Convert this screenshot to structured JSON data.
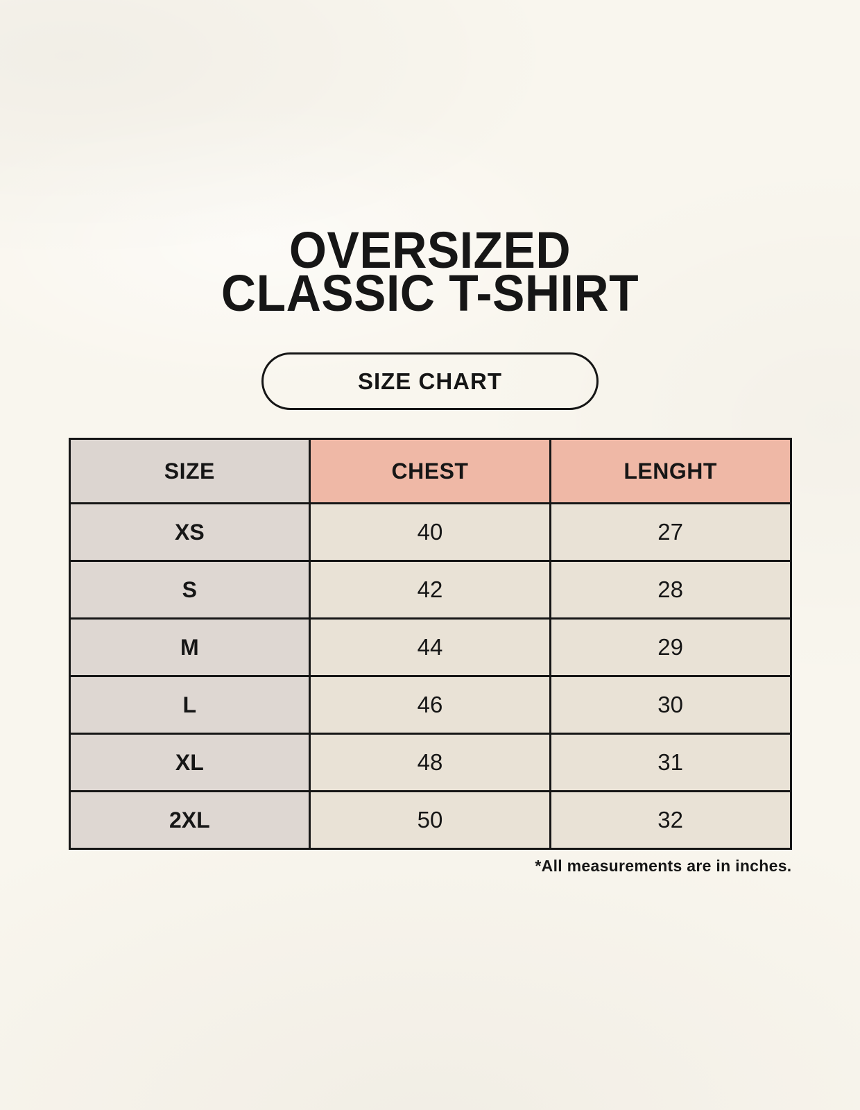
{
  "page": {
    "title_line1": "OVERSIZED",
    "title_line2": "CLASSIC T-SHIRT",
    "badge_label": "SIZE CHART",
    "footnote": "*All measurements are in inches."
  },
  "colors": {
    "page_bg": "#f9f6ee",
    "header_label_bg": "#dcd5d0",
    "header_accent_bg": "#efb8a6",
    "row_label_bg": "#ded7d2",
    "row_value_bg": "#e9e2d6",
    "border": "#161616",
    "text": "#161616"
  },
  "table": {
    "columns": [
      "SIZE",
      "CHEST",
      "LENGHT"
    ],
    "rows": [
      {
        "size": "XS",
        "chest": "40",
        "length": "27"
      },
      {
        "size": "S",
        "chest": "42",
        "length": "28"
      },
      {
        "size": "M",
        "chest": "44",
        "length": "29"
      },
      {
        "size": "L",
        "chest": "46",
        "length": "30"
      },
      {
        "size": "XL",
        "chest": "48",
        "length": "31"
      },
      {
        "size": "2XL",
        "chest": "50",
        "length": "32"
      }
    ]
  },
  "chart_data": {
    "type": "table",
    "title": "OVERSIZED CLASSIC T-SHIRT",
    "subtitle": "SIZE CHART",
    "columns": [
      "SIZE",
      "CHEST",
      "LENGHT"
    ],
    "rows": [
      [
        "XS",
        40,
        27
      ],
      [
        "S",
        42,
        28
      ],
      [
        "M",
        44,
        29
      ],
      [
        "L",
        46,
        30
      ],
      [
        "XL",
        48,
        31
      ],
      [
        "2XL",
        50,
        32
      ]
    ],
    "units": "inches",
    "note": "*All measurements are in inches."
  }
}
